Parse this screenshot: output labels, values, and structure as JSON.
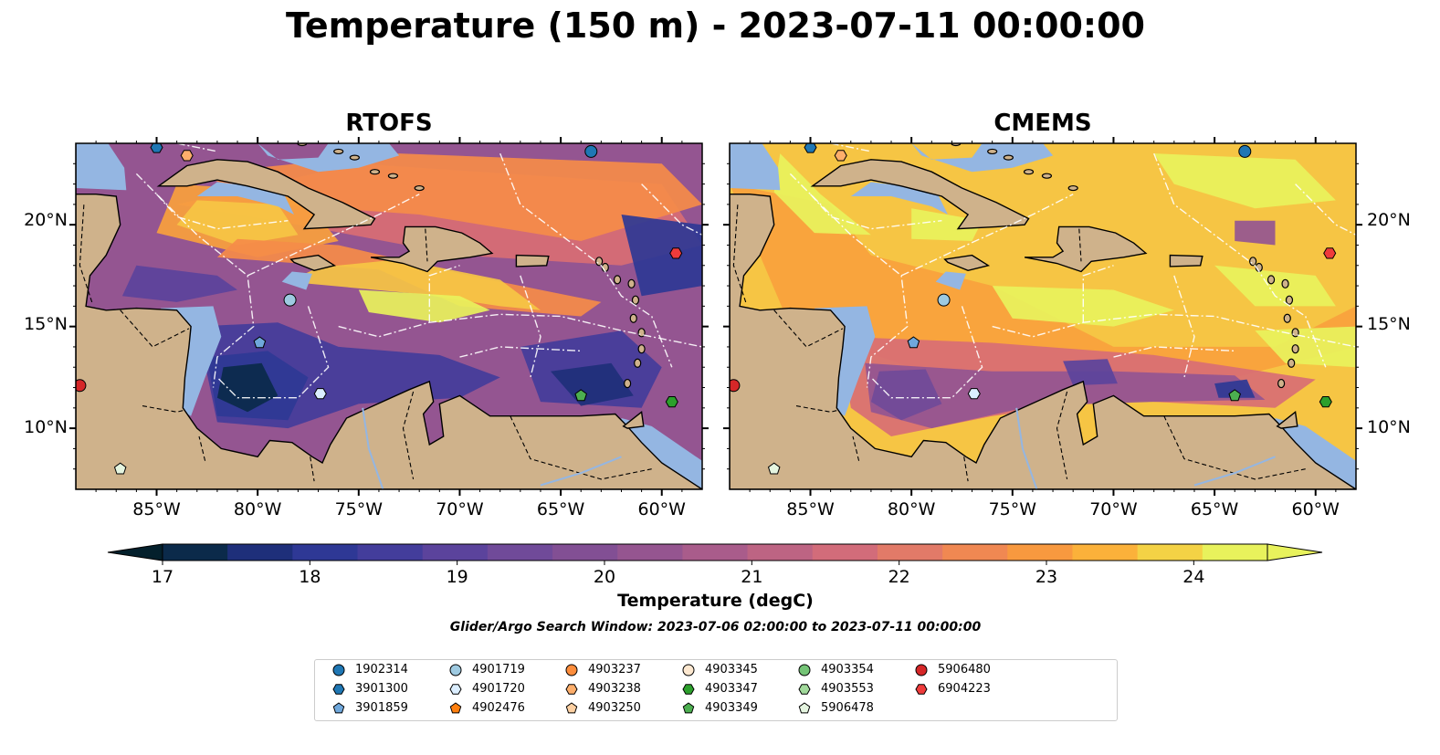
{
  "title": "Temperature (150 m) - 2023-07-11 00:00:00",
  "panels": [
    {
      "title": "RTOFS",
      "variant": "rtofs"
    },
    {
      "title": "CMEMS",
      "variant": "cmems"
    }
  ],
  "axes": {
    "lon_labels": [
      "85°W",
      "80°W",
      "75°W",
      "70°W",
      "65°W",
      "60°W"
    ],
    "lat_labels": [
      "20°N",
      "15°N",
      "10°N"
    ],
    "lon_ticks": [
      -85,
      -80,
      -75,
      -70,
      -65,
      -60
    ],
    "lat_ticks": [
      20,
      15,
      10
    ],
    "lon_range": [
      -89,
      -58
    ],
    "lat_range": [
      7,
      24
    ]
  },
  "colorbar": {
    "label": "Temperature (degC)",
    "tick_labels": [
      "17",
      "18",
      "19",
      "20",
      "21",
      "22",
      "23",
      "24"
    ],
    "range": [
      17,
      24.5
    ],
    "step": 0.5,
    "colors": [
      "#04202c",
      "#0b2a4a",
      "#1e2f7a",
      "#2e3895",
      "#433d9b",
      "#5b439c",
      "#704a99",
      "#824f94",
      "#955590",
      "#a95c8b",
      "#bd6483",
      "#d26c7a",
      "#e27a68",
      "#f08852",
      "#f8993f",
      "#fbb13a",
      "#f4d245",
      "#e8f25c"
    ],
    "extend": "both"
  },
  "search_window": "Glider/Argo Search Window: 2023-07-06 02:00:00 to 2023-07-11 00:00:00",
  "colors": {
    "land": "#cfb28b",
    "shallow_water": "#94b6e2",
    "deep_low": "#04202c",
    "coastline": "#000000",
    "eez_lines": "#ffffff"
  },
  "legend": {
    "items": [
      {
        "label": "1902314",
        "marker": "circle",
        "color": "#1f77b4"
      },
      {
        "label": "3901300",
        "marker": "hexagon",
        "color": "#1f77b4"
      },
      {
        "label": "3901859",
        "marker": "pentagon",
        "color": "#6fa8dc"
      },
      {
        "label": "4901719",
        "marker": "circle",
        "color": "#9ecae1"
      },
      {
        "label": "4901720",
        "marker": "hexagon",
        "color": "#dbeeff"
      },
      {
        "label": "4902476",
        "marker": "pentagon",
        "color": "#ff7f0e"
      },
      {
        "label": "4903237",
        "marker": "circle",
        "color": "#fd8d3c"
      },
      {
        "label": "4903238",
        "marker": "hexagon",
        "color": "#fdae6b"
      },
      {
        "label": "4903250",
        "marker": "pentagon",
        "color": "#fdd0a2"
      },
      {
        "label": "4903345",
        "marker": "circle",
        "color": "#fde8d0"
      },
      {
        "label": "4903347",
        "marker": "hexagon",
        "color": "#2ca02c"
      },
      {
        "label": "4903349",
        "marker": "pentagon",
        "color": "#4caf50"
      },
      {
        "label": "4903354",
        "marker": "circle",
        "color": "#74c476"
      },
      {
        "label": "4903553",
        "marker": "hexagon",
        "color": "#a1d99b"
      },
      {
        "label": "5906478",
        "marker": "pentagon",
        "color": "#e5f5e0"
      },
      {
        "label": "5906480",
        "marker": "circle",
        "color": "#d62728"
      },
      {
        "label": "6904223",
        "marker": "hexagon",
        "color": "#ef3b3b"
      }
    ]
  },
  "floats": [
    {
      "id": "1902314",
      "lon": -63.5,
      "lat": 23.6
    },
    {
      "id": "3901300",
      "lon": -85.0,
      "lat": 23.8
    },
    {
      "id": "4903238",
      "lon": -83.5,
      "lat": 23.4
    },
    {
      "id": "6904223",
      "lon": -59.3,
      "lat": 18.6
    },
    {
      "id": "4901719",
      "lon": -78.4,
      "lat": 16.3
    },
    {
      "id": "3901859",
      "lon": -79.9,
      "lat": 14.2
    },
    {
      "id": "4901720",
      "lon": -76.9,
      "lat": 11.7
    },
    {
      "id": "4903349",
      "lon": -64.0,
      "lat": 11.6
    },
    {
      "id": "4903347",
      "lon": -59.5,
      "lat": 11.3
    },
    {
      "id": "5906480",
      "lon": -88.8,
      "lat": 12.1
    },
    {
      "id": "5906478",
      "lon": -86.8,
      "lat": 8.0
    }
  ]
}
